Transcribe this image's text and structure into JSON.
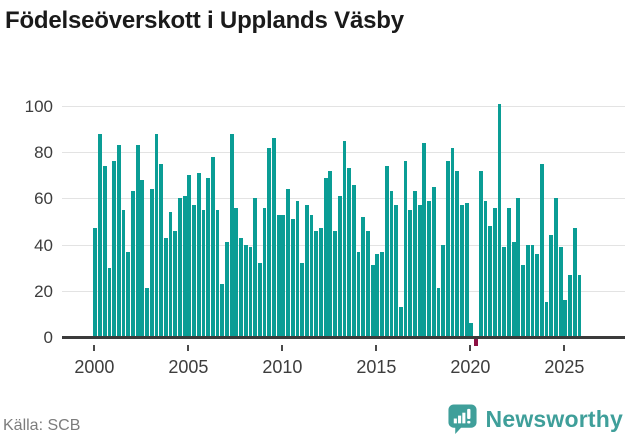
{
  "title": "Födelseöverskott i Upplands Väsby",
  "source": "Källa: SCB",
  "branding": {
    "name": "Newsworthy",
    "icon": "newsworthy-chart-bubble-icon"
  },
  "colors": {
    "bar_positive": "#0a9d95",
    "bar_negative": "#8d1043",
    "axis": "#3b3b3b",
    "gridline": "#e3e3e3",
    "title_text": "#1a1a1a",
    "tick_text": "#3d3d3d",
    "source_text": "#7c7c7c",
    "brand_teal": "#3f9f9a",
    "background": "#ffffff"
  },
  "chart_data": {
    "type": "bar",
    "title": "Födelseöverskott i Upplands Väsby",
    "xlabel": "",
    "ylabel": "",
    "x_unit": "quarter",
    "x_start": "2000 Q1",
    "x_end": "2025 Q4",
    "x_tick_years": [
      2000,
      2005,
      2010,
      2015,
      2020,
      2025
    ],
    "y_ticks": [
      0,
      20,
      40,
      60,
      80,
      100
    ],
    "ylim": [
      -10,
      105
    ],
    "grid": true,
    "legend": "none",
    "values": [
      47,
      88,
      74,
      30,
      76,
      83,
      55,
      37,
      63,
      83,
      68,
      21,
      64,
      88,
      75,
      43,
      54,
      46,
      60,
      61,
      70,
      57,
      71,
      55,
      69,
      78,
      55,
      23,
      41,
      88,
      56,
      43,
      40,
      39,
      60,
      32,
      56,
      82,
      86,
      53,
      53,
      64,
      51,
      59,
      32,
      57,
      53,
      46,
      47,
      69,
      72,
      46,
      61,
      85,
      73,
      66,
      37,
      52,
      46,
      31,
      36,
      37,
      74,
      63,
      57,
      13,
      76,
      55,
      63,
      57,
      84,
      59,
      65,
      21,
      40,
      76,
      82,
      72,
      57,
      58,
      6,
      -4,
      72,
      59,
      48,
      56,
      101,
      39,
      56,
      41,
      60,
      31,
      40,
      40,
      36,
      75,
      15,
      44,
      60,
      39,
      16,
      27,
      47,
      27
    ]
  }
}
